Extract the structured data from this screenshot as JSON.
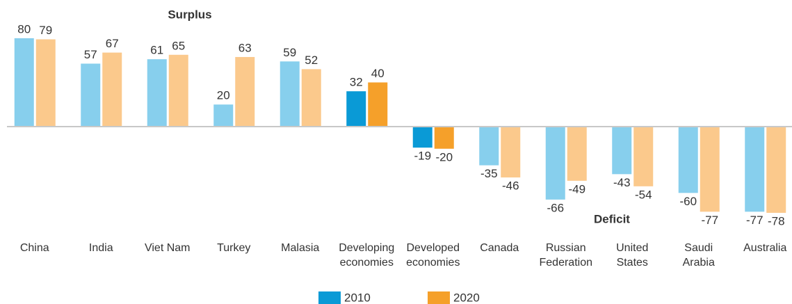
{
  "chart_data": {
    "type": "bar",
    "annotations": [
      "Surplus",
      "Deficit"
    ],
    "categories": [
      "China",
      "India",
      "Viet Nam",
      "Turkey",
      "Malasia",
      "Developing\neconomies",
      "Developed\neconomies",
      "Canada",
      "Russian\nFederation",
      "United\nStates",
      "Saudi\nArabia",
      "Australia"
    ],
    "series": [
      {
        "name": "2010",
        "color": "#0a9ad6",
        "bar_colors": [
          "#87cfed",
          "#87cfed",
          "#87cfed",
          "#87cfed",
          "#87cfed",
          "#0a9ad6",
          "#0a9ad6",
          "#87cfed",
          "#87cfed",
          "#87cfed",
          "#87cfed",
          "#87cfed"
        ],
        "values": [
          80,
          57,
          61,
          20,
          59,
          32,
          -19,
          -35,
          -66,
          -43,
          -60,
          -77
        ]
      },
      {
        "name": "2020",
        "color": "#f5a02a",
        "bar_colors": [
          "#fbc98c",
          "#fbc98c",
          "#fbc98c",
          "#fbc98c",
          "#fbc98c",
          "#f5a02a",
          "#f5a02a",
          "#fbc98c",
          "#fbc98c",
          "#fbc98c",
          "#fbc98c",
          "#fbc98c"
        ],
        "values": [
          79,
          67,
          65,
          63,
          52,
          40,
          -20,
          -46,
          -49,
          -54,
          -77,
          -78
        ]
      }
    ],
    "ylim": [
      -90,
      85
    ]
  }
}
